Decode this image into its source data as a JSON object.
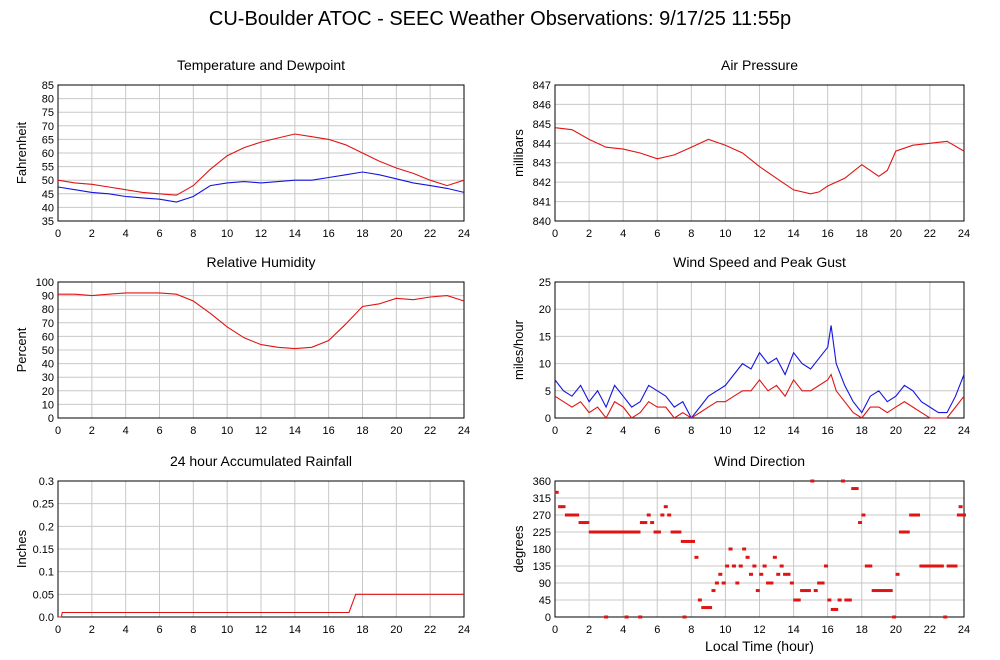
{
  "page": {
    "title": "CU-Boulder ATOC - SEEC Weather Observations: 9/17/25 11:55p"
  },
  "x_axis": {
    "ticks": [
      0,
      2,
      4,
      6,
      8,
      10,
      12,
      14,
      16,
      18,
      20,
      22,
      24
    ],
    "label": "Local Time (hour)"
  },
  "colors": {
    "red": "#e01414",
    "blue": "#1414e0",
    "grid": "#c8c8c8"
  },
  "chart_data": [
    {
      "id": "temp",
      "type": "line",
      "title": "Temperature and Dewpoint",
      "ylabel": "Fahrenheit",
      "xlabel": "",
      "xlim": [
        0,
        24
      ],
      "ylim": [
        35,
        85
      ],
      "yticks": [
        35,
        40,
        45,
        50,
        55,
        60,
        65,
        70,
        75,
        80,
        85
      ],
      "grid": true,
      "series": [
        {
          "color": "red",
          "x": [
            0,
            1,
            2,
            3,
            4,
            5,
            6,
            7,
            8,
            9,
            10,
            11,
            12,
            13,
            14,
            15,
            16,
            17,
            18,
            19,
            20,
            21,
            22,
            23,
            24
          ],
          "values": [
            50,
            49,
            48.5,
            47.5,
            46.5,
            45.5,
            45,
            44.5,
            48,
            54,
            59,
            62,
            64,
            65.5,
            67,
            66,
            65,
            63,
            60,
            57,
            54.5,
            52.5,
            50,
            48,
            50
          ]
        },
        {
          "color": "blue",
          "x": [
            0,
            1,
            2,
            3,
            4,
            5,
            6,
            7,
            8,
            9,
            10,
            11,
            12,
            13,
            14,
            15,
            16,
            17,
            18,
            19,
            20,
            21,
            22,
            23,
            24
          ],
          "values": [
            47.5,
            46.5,
            45.5,
            45,
            44,
            43.5,
            43,
            42,
            44,
            48,
            49,
            49.5,
            49,
            49.5,
            50,
            50,
            51,
            52,
            53,
            52,
            50.5,
            49,
            48,
            47,
            45.5
          ]
        }
      ]
    },
    {
      "id": "pressure",
      "type": "line",
      "title": "Air Pressure",
      "ylabel": "millibars",
      "xlabel": "",
      "xlim": [
        0,
        24
      ],
      "ylim": [
        840,
        847
      ],
      "yticks": [
        840,
        841,
        842,
        843,
        844,
        845,
        846,
        847
      ],
      "grid": true,
      "series": [
        {
          "color": "red",
          "x": [
            0,
            1,
            2,
            3,
            4,
            5,
            6,
            7,
            8,
            9,
            10,
            11,
            12,
            13,
            14,
            15,
            15.5,
            16,
            17,
            18,
            19,
            19.5,
            20,
            21,
            22,
            23,
            24
          ],
          "values": [
            844.8,
            844.7,
            844.2,
            843.8,
            843.7,
            843.5,
            843.2,
            843.4,
            843.8,
            844.2,
            843.9,
            843.5,
            842.8,
            842.2,
            841.6,
            841.4,
            841.5,
            841.8,
            842.2,
            842.9,
            842.3,
            842.6,
            843.6,
            843.9,
            844.0,
            844.1,
            843.6
          ]
        }
      ]
    },
    {
      "id": "humidity",
      "type": "line",
      "title": "Relative Humidity",
      "ylabel": "Percent",
      "xlabel": "",
      "xlim": [
        0,
        24
      ],
      "ylim": [
        0,
        100
      ],
      "yticks": [
        0,
        10,
        20,
        30,
        40,
        50,
        60,
        70,
        80,
        90,
        100
      ],
      "grid": true,
      "series": [
        {
          "color": "red",
          "x": [
            0,
            1,
            2,
            3,
            4,
            5,
            6,
            7,
            8,
            9,
            10,
            11,
            12,
            13,
            14,
            15,
            16,
            17,
            18,
            19,
            20,
            21,
            22,
            23,
            24
          ],
          "values": [
            91,
            91,
            90,
            91,
            92,
            92,
            92,
            91,
            86,
            77,
            67,
            59,
            54,
            52,
            51,
            52,
            57,
            69,
            82,
            84,
            88,
            87,
            89,
            90,
            86
          ]
        }
      ]
    },
    {
      "id": "wind",
      "type": "line",
      "title": "Wind Speed and Peak Gust",
      "ylabel": "miles/hour",
      "xlabel": "",
      "xlim": [
        0,
        24
      ],
      "ylim": [
        0,
        25
      ],
      "yticks": [
        0,
        5,
        10,
        15,
        20,
        25
      ],
      "grid": true,
      "series": [
        {
          "color": "blue",
          "x": [
            0,
            0.5,
            1,
            1.5,
            2,
            2.5,
            3,
            3.5,
            4,
            4.5,
            5,
            5.5,
            6,
            6.5,
            7,
            7.5,
            8,
            8.5,
            9,
            9.5,
            10,
            10.5,
            11,
            11.5,
            12,
            12.5,
            13,
            13.5,
            14,
            14.5,
            15,
            15.5,
            16,
            16.2,
            16.5,
            17,
            17.5,
            18,
            18.5,
            19,
            19.5,
            20,
            20.5,
            21,
            21.5,
            22,
            22.5,
            23,
            23.5,
            24
          ],
          "values": [
            7,
            5,
            4,
            6,
            3,
            5,
            2,
            6,
            4,
            2,
            3,
            6,
            5,
            4,
            2,
            3,
            0,
            2,
            4,
            5,
            6,
            8,
            10,
            9,
            12,
            10,
            11,
            8,
            12,
            10,
            9,
            11,
            13,
            17,
            10,
            6,
            3,
            1,
            4,
            5,
            3,
            4,
            6,
            5,
            3,
            2,
            1,
            1,
            4,
            8
          ]
        },
        {
          "color": "red",
          "x": [
            0,
            0.5,
            1,
            1.5,
            2,
            2.5,
            3,
            3.5,
            4,
            4.5,
            5,
            5.5,
            6,
            6.5,
            7,
            7.5,
            8,
            8.5,
            9,
            9.5,
            10,
            10.5,
            11,
            11.5,
            12,
            12.5,
            13,
            13.5,
            14,
            14.5,
            15,
            15.5,
            16,
            16.2,
            16.5,
            17,
            17.5,
            18,
            18.5,
            19,
            19.5,
            20,
            20.5,
            21,
            21.5,
            22,
            22.5,
            23,
            23.5,
            24
          ],
          "values": [
            4,
            3,
            2,
            3,
            1,
            2,
            0,
            3,
            2,
            0,
            1,
            3,
            2,
            2,
            0,
            1,
            0,
            1,
            2,
            3,
            3,
            4,
            5,
            5,
            7,
            5,
            6,
            4,
            7,
            5,
            5,
            6,
            7,
            8,
            5,
            3,
            1,
            0,
            2,
            2,
            1,
            2,
            3,
            2,
            1,
            0,
            0,
            0,
            2,
            4
          ]
        }
      ]
    },
    {
      "id": "rain",
      "type": "line",
      "title": "24 hour Accumulated Rainfall",
      "ylabel": "Inches",
      "xlabel": "",
      "xlim": [
        0,
        24
      ],
      "ylim": [
        0,
        0.3
      ],
      "yticks": [
        0.0,
        0.05,
        0.1,
        0.15,
        0.2,
        0.25,
        0.3
      ],
      "grid": true,
      "series": [
        {
          "color": "red",
          "x": [
            0,
            0.2,
            0.25,
            17.2,
            17.5,
            17.6,
            24
          ],
          "values": [
            0,
            0,
            0.01,
            0.01,
            0.04,
            0.05,
            0.05
          ]
        }
      ]
    },
    {
      "id": "direction",
      "type": "scatter",
      "title": "Wind Direction",
      "ylabel": "degrees",
      "xlabel": "Local Time (hour)",
      "xlim": [
        0,
        24
      ],
      "ylim": [
        0,
        360
      ],
      "yticks": [
        0,
        45,
        90,
        135,
        180,
        225,
        270,
        315,
        360
      ],
      "grid": true,
      "series": [
        {
          "color": "red",
          "points": [
            [
              0.1,
              330
            ],
            [
              0.3,
              292
            ],
            [
              0.5,
              292
            ],
            [
              0.7,
              270
            ],
            [
              0.9,
              270
            ],
            [
              1.1,
              270
            ],
            [
              1.3,
              270
            ],
            [
              1.5,
              250
            ],
            [
              1.7,
              250
            ],
            [
              1.9,
              250
            ],
            [
              2.1,
              225
            ],
            [
              2.3,
              225
            ],
            [
              2.5,
              225
            ],
            [
              2.7,
              225
            ],
            [
              2.9,
              225
            ],
            [
              3.0,
              0
            ],
            [
              3.1,
              225
            ],
            [
              3.3,
              225
            ],
            [
              3.5,
              225
            ],
            [
              3.7,
              225
            ],
            [
              3.9,
              225
            ],
            [
              4.1,
              225
            ],
            [
              4.2,
              0
            ],
            [
              4.3,
              225
            ],
            [
              4.5,
              225
            ],
            [
              4.7,
              225
            ],
            [
              4.9,
              225
            ],
            [
              5.0,
              0
            ],
            [
              5.1,
              250
            ],
            [
              5.3,
              250
            ],
            [
              5.5,
              270
            ],
            [
              5.7,
              250
            ],
            [
              5.9,
              225
            ],
            [
              6.1,
              225
            ],
            [
              6.3,
              270
            ],
            [
              6.5,
              292
            ],
            [
              6.7,
              270
            ],
            [
              6.9,
              225
            ],
            [
              7.1,
              225
            ],
            [
              7.3,
              225
            ],
            [
              7.5,
              200
            ],
            [
              7.6,
              0
            ],
            [
              7.7,
              200
            ],
            [
              7.9,
              200
            ],
            [
              8.1,
              200
            ],
            [
              8.3,
              158
            ],
            [
              8.5,
              45
            ],
            [
              8.7,
              25
            ],
            [
              8.9,
              25
            ],
            [
              9.1,
              25
            ],
            [
              9.3,
              70
            ],
            [
              9.5,
              90
            ],
            [
              9.7,
              113
            ],
            [
              9.9,
              90
            ],
            [
              10.1,
              135
            ],
            [
              10.3,
              180
            ],
            [
              10.5,
              135
            ],
            [
              10.7,
              90
            ],
            [
              10.9,
              135
            ],
            [
              11.1,
              180
            ],
            [
              11.3,
              158
            ],
            [
              11.5,
              113
            ],
            [
              11.7,
              135
            ],
            [
              11.9,
              70
            ],
            [
              12.1,
              113
            ],
            [
              12.3,
              135
            ],
            [
              12.5,
              90
            ],
            [
              12.7,
              90
            ],
            [
              12.9,
              158
            ],
            [
              13.1,
              113
            ],
            [
              13.3,
              135
            ],
            [
              13.5,
              113
            ],
            [
              13.7,
              113
            ],
            [
              13.9,
              90
            ],
            [
              14.1,
              45
            ],
            [
              14.3,
              45
            ],
            [
              14.5,
              70
            ],
            [
              14.7,
              70
            ],
            [
              14.9,
              70
            ],
            [
              15.1,
              360
            ],
            [
              15.3,
              70
            ],
            [
              15.5,
              90
            ],
            [
              15.7,
              90
            ],
            [
              15.9,
              135
            ],
            [
              16.1,
              45
            ],
            [
              16.3,
              20
            ],
            [
              16.5,
              20
            ],
            [
              16.7,
              45
            ],
            [
              16.9,
              360
            ],
            [
              17.1,
              45
            ],
            [
              17.3,
              45
            ],
            [
              17.5,
              340
            ],
            [
              17.7,
              340
            ],
            [
              17.9,
              250
            ],
            [
              18.1,
              270
            ],
            [
              18.3,
              135
            ],
            [
              18.5,
              135
            ],
            [
              18.7,
              70
            ],
            [
              18.9,
              70
            ],
            [
              19.1,
              70
            ],
            [
              19.3,
              70
            ],
            [
              19.5,
              70
            ],
            [
              19.7,
              70
            ],
            [
              19.9,
              0
            ],
            [
              20.1,
              113
            ],
            [
              20.3,
              225
            ],
            [
              20.5,
              225
            ],
            [
              20.7,
              225
            ],
            [
              20.9,
              270
            ],
            [
              21.1,
              270
            ],
            [
              21.3,
              270
            ],
            [
              21.5,
              135
            ],
            [
              21.7,
              135
            ],
            [
              21.9,
              135
            ],
            [
              22.1,
              135
            ],
            [
              22.3,
              135
            ],
            [
              22.5,
              135
            ],
            [
              22.7,
              135
            ],
            [
              22.9,
              0
            ],
            [
              23.1,
              135
            ],
            [
              23.3,
              135
            ],
            [
              23.5,
              135
            ],
            [
              23.7,
              270
            ],
            [
              23.8,
              292
            ],
            [
              23.9,
              270
            ],
            [
              24.0,
              270
            ]
          ]
        }
      ]
    }
  ]
}
